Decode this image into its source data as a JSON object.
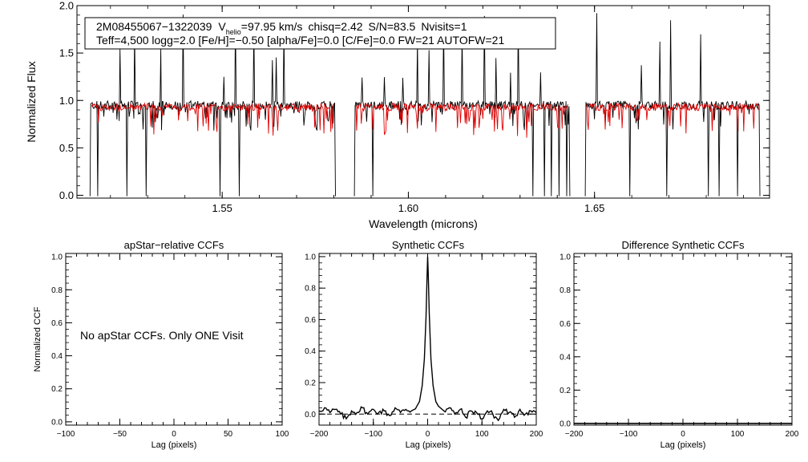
{
  "header": {
    "star_id": "2M08455067−1322039",
    "vhelio_symbol": "V",
    "vhelio_subscript": "helio",
    "vhelio_value": "=97.95 km/s",
    "chisq": "chisq=2.42",
    "snr": "S/N=83.5",
    "nvisits": "Nvisits=1",
    "params_line": "Teff=4,500 logg=2.0 [Fe/H]=−0.50 [alpha/Fe]=0.0 [C/Fe]=0.0 FW=21 AUTOFW=21"
  },
  "chart_data": [
    {
      "id": "spectrum",
      "type": "line",
      "title": "",
      "xlabel": "Wavelength (microns)",
      "ylabel": "Normalized Flux",
      "xlim": [
        1.511,
        1.697
      ],
      "ylim": [
        -0.03,
        2.0
      ],
      "xticks": [
        {
          "v": 1.55,
          "label": "1.55"
        },
        {
          "v": 1.6,
          "label": "1.60"
        },
        {
          "v": 1.65,
          "label": "1.65"
        }
      ],
      "yticks": [
        {
          "v": 0.0,
          "label": "0.0"
        },
        {
          "v": 0.5,
          "label": "0.5"
        },
        {
          "v": 1.0,
          "label": "1.0"
        },
        {
          "v": 1.5,
          "label": "1.5"
        },
        {
          "v": 2.0,
          "label": "2.0"
        }
      ],
      "detectors": [
        [
          1.5145,
          1.5805
        ],
        [
          1.5855,
          1.6435
        ],
        [
          1.6475,
          1.6945
        ]
      ],
      "series": [
        {
          "name": "observed",
          "color": "#000000"
        },
        {
          "name": "model",
          "color": "#e00000"
        }
      ],
      "continuum": 0.95,
      "emission_spikes": [
        1.5225,
        1.5265,
        1.5335,
        1.5395,
        1.5505,
        1.5535,
        1.5585,
        1.5635,
        1.5645,
        1.5665,
        1.5875,
        1.5935,
        1.5985,
        1.6025,
        1.6055,
        1.6095,
        1.6145,
        1.6205,
        1.6235,
        1.6275,
        1.6295,
        1.6355,
        1.6505,
        1.6595,
        1.6625,
        1.6675,
        1.6705,
        1.6785,
        1.6885
      ],
      "bad_pixel_drops": [
        1.5145,
        1.5165,
        1.5245,
        1.5295,
        1.5495,
        1.5545,
        1.5805,
        1.5855,
        1.5905,
        1.6335,
        1.6365,
        1.6385,
        1.6405,
        1.6425,
        1.6435,
        1.6475,
        1.6595,
        1.6695,
        1.6805,
        1.6835,
        1.6885,
        1.6945
      ]
    },
    {
      "id": "apstar-ccf",
      "type": "line",
      "title": "apStar−relative CCFs",
      "xlabel": "Lag (pixels)",
      "ylabel": "Normalized CCF",
      "xlim": [
        -100,
        100
      ],
      "ylim": [
        -0.02,
        1.02
      ],
      "xticks": [
        {
          "v": -100,
          "label": "−100"
        },
        {
          "v": -50,
          "label": "−50"
        },
        {
          "v": 0,
          "label": "0"
        },
        {
          "v": 50,
          "label": "50"
        },
        {
          "v": 100,
          "label": "100"
        }
      ],
      "yticks": [
        {
          "v": 0.0,
          "label": "0.0"
        },
        {
          "v": 0.2,
          "label": "0.2"
        },
        {
          "v": 0.4,
          "label": "0.4"
        },
        {
          "v": 0.6,
          "label": "0.6"
        },
        {
          "v": 0.8,
          "label": "0.8"
        },
        {
          "v": 1.0,
          "label": "1.0"
        }
      ],
      "annotation": "No apStar CCFs.  Only ONE Visit",
      "series": []
    },
    {
      "id": "synthetic-ccf",
      "type": "line",
      "title": "Synthetic CCFs",
      "xlabel": "Lag (pixels)",
      "ylabel": "",
      "xlim": [
        -200,
        200
      ],
      "ylim": [
        -0.07,
        1.02
      ],
      "xticks": [
        {
          "v": -200,
          "label": "−200"
        },
        {
          "v": -100,
          "label": "−100"
        },
        {
          "v": 0,
          "label": "0"
        },
        {
          "v": 100,
          "label": "100"
        },
        {
          "v": 200,
          "label": "200"
        }
      ],
      "yticks": [
        {
          "v": 0.0,
          "label": "0.0"
        },
        {
          "v": 0.2,
          "label": "0.2"
        },
        {
          "v": 0.4,
          "label": "0.4"
        },
        {
          "v": 0.6,
          "label": "0.6"
        },
        {
          "v": 0.8,
          "label": "0.8"
        },
        {
          "v": 1.0,
          "label": "1.0"
        }
      ],
      "reference_line": 0.0,
      "series": [
        {
          "name": "ccf",
          "x": [
            -200,
            -190,
            -180,
            -170,
            -160,
            -150,
            -140,
            -130,
            -120,
            -110,
            -100,
            -90,
            -80,
            -70,
            -60,
            -50,
            -40,
            -30,
            -20,
            -15,
            -10,
            -6,
            -3,
            -1,
            0,
            1,
            3,
            6,
            10,
            15,
            20,
            30,
            40,
            50,
            60,
            70,
            80,
            90,
            100,
            110,
            120,
            130,
            140,
            150,
            160,
            170,
            180,
            190,
            200
          ],
          "y": [
            0.02,
            0.04,
            0.01,
            0.03,
            0.0,
            -0.03,
            0.02,
            0.01,
            0.04,
            0.0,
            0.03,
            0.01,
            0.02,
            -0.01,
            0.04,
            0.01,
            0.03,
            0.02,
            0.05,
            0.08,
            0.18,
            0.35,
            0.62,
            0.88,
            1.0,
            0.9,
            0.64,
            0.35,
            0.18,
            0.08,
            0.05,
            0.02,
            0.04,
            0.0,
            0.03,
            -0.02,
            0.02,
            0.01,
            -0.03,
            0.02,
            0.0,
            -0.04,
            0.03,
            0.01,
            -0.02,
            0.03,
            0.0,
            0.02,
            0.01
          ]
        }
      ]
    },
    {
      "id": "difference-ccf",
      "type": "line",
      "title": "Difference Synthetic CCFs",
      "xlabel": "Lag (pixels)",
      "ylabel": "",
      "xlim": [
        -200,
        200
      ],
      "ylim": [
        -0.01,
        1.02
      ],
      "xticks": [
        {
          "v": -200,
          "label": "−200"
        },
        {
          "v": -100,
          "label": "−100"
        },
        {
          "v": 0,
          "label": "0"
        },
        {
          "v": 100,
          "label": "100"
        },
        {
          "v": 200,
          "label": "200"
        }
      ],
      "yticks": [
        {
          "v": 0.0,
          "label": "0.0"
        },
        {
          "v": 0.2,
          "label": "0.2"
        },
        {
          "v": 0.4,
          "label": "0.4"
        },
        {
          "v": 0.6,
          "label": "0.6"
        },
        {
          "v": 0.8,
          "label": "0.8"
        },
        {
          "v": 1.0,
          "label": "1.0"
        }
      ],
      "series": [
        {
          "name": "difference",
          "x": [
            -200,
            200
          ],
          "y": [
            0.0,
            0.0
          ]
        }
      ]
    }
  ]
}
